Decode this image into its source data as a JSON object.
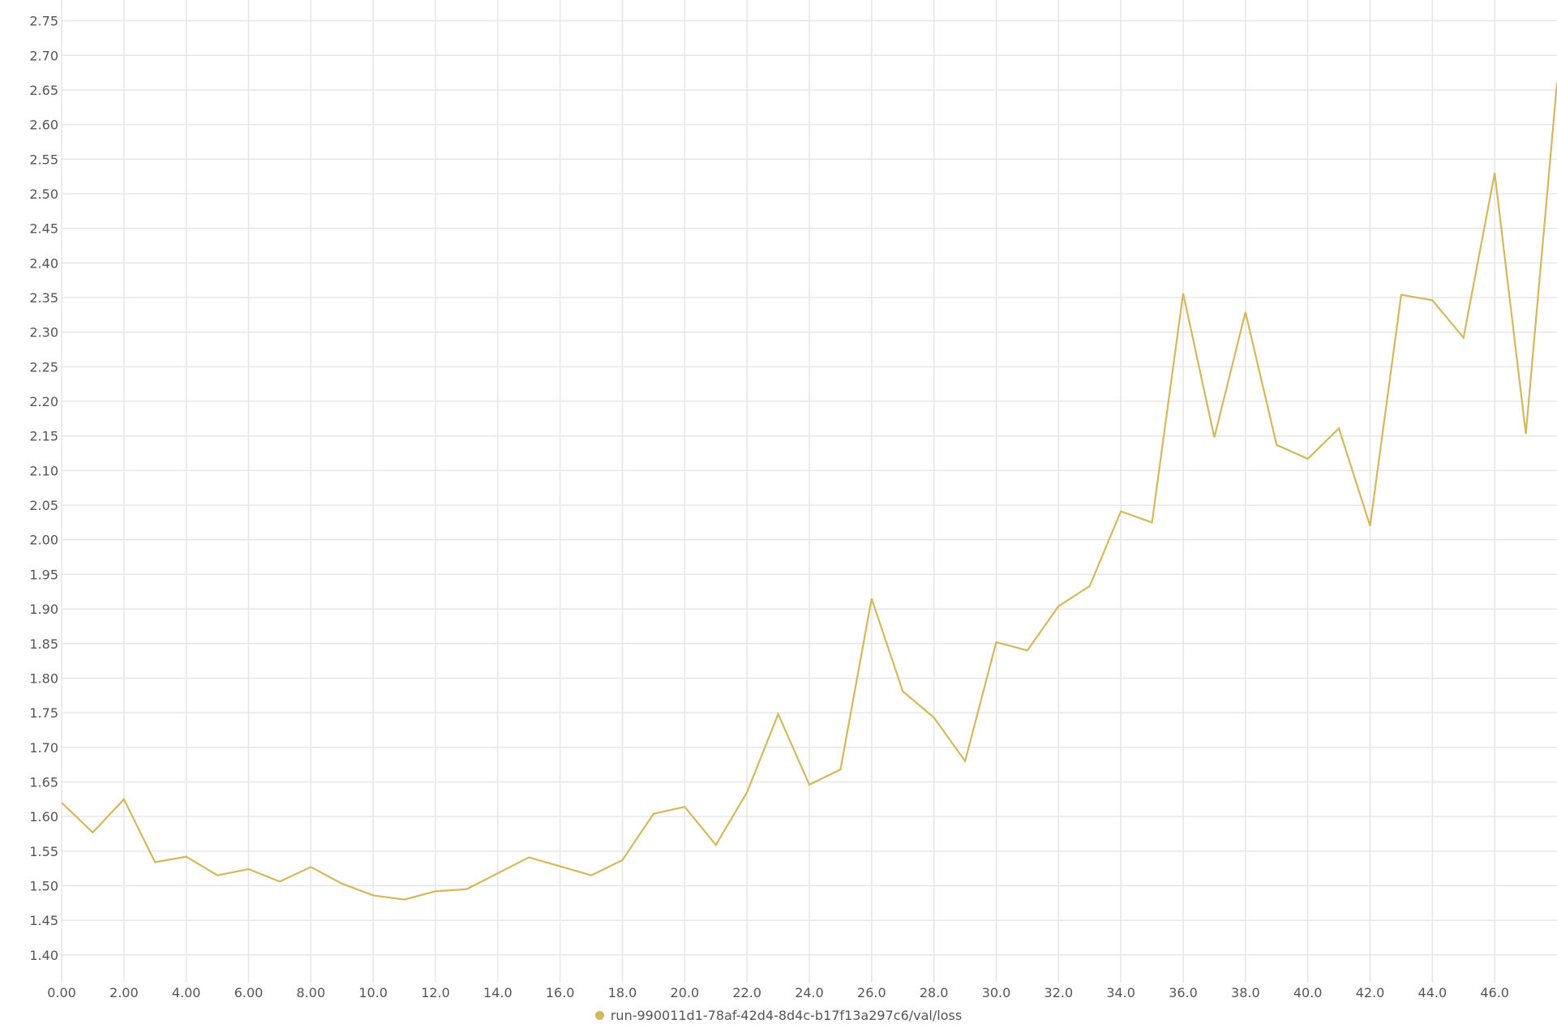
{
  "chart_data": {
    "type": "line",
    "title": "",
    "xlabel": "",
    "ylabel": "",
    "xlim": [
      0,
      48
    ],
    "ylim": [
      1.36,
      2.78
    ],
    "x_ticks": [
      "0.00",
      "2.00",
      "4.00",
      "6.00",
      "8.00",
      "10.0",
      "12.0",
      "14.0",
      "16.0",
      "18.0",
      "20.0",
      "22.0",
      "24.0",
      "26.0",
      "28.0",
      "30.0",
      "32.0",
      "34.0",
      "36.0",
      "38.0",
      "40.0",
      "42.0",
      "44.0",
      "46.0"
    ],
    "y_ticks": [
      "1.40",
      "1.45",
      "1.50",
      "1.55",
      "1.60",
      "1.65",
      "1.70",
      "1.75",
      "1.80",
      "1.85",
      "1.90",
      "1.95",
      "2.00",
      "2.05",
      "2.10",
      "2.15",
      "2.20",
      "2.25",
      "2.30",
      "2.35",
      "2.40",
      "2.45",
      "2.50",
      "2.55",
      "2.60",
      "2.65",
      "2.70",
      "2.75"
    ],
    "grid": true,
    "legend_position": "bottom-center",
    "series": [
      {
        "name": "run-990011d1-78af-42d4-8d4c-b17f13a297c6/val/loss",
        "color": "#d4b85a",
        "x": [
          0,
          1,
          2,
          3,
          4,
          5,
          6,
          7,
          8,
          9,
          10,
          11,
          12,
          13,
          14,
          15,
          16,
          17,
          18,
          19,
          20,
          21,
          22,
          23,
          24,
          25,
          26,
          27,
          28,
          29,
          30,
          31,
          32,
          33,
          34,
          35,
          36,
          37,
          38,
          39,
          40,
          41,
          42,
          43,
          44,
          45,
          46,
          47,
          48
        ],
        "y": [
          1.62,
          1.577,
          1.625,
          1.534,
          1.542,
          1.515,
          1.524,
          1.506,
          1.527,
          1.503,
          1.486,
          1.48,
          1.492,
          1.495,
          1.518,
          1.541,
          1.528,
          1.515,
          1.537,
          1.604,
          1.614,
          1.559,
          1.635,
          1.748,
          1.646,
          1.668,
          1.915,
          1.781,
          1.743,
          1.68,
          1.852,
          1.84,
          1.904,
          1.933,
          2.041,
          2.025,
          2.356,
          2.148,
          2.329,
          2.137,
          2.117,
          2.161,
          2.02,
          2.354,
          2.346,
          2.292,
          2.53,
          2.153,
          2.66
        ]
      }
    ]
  }
}
